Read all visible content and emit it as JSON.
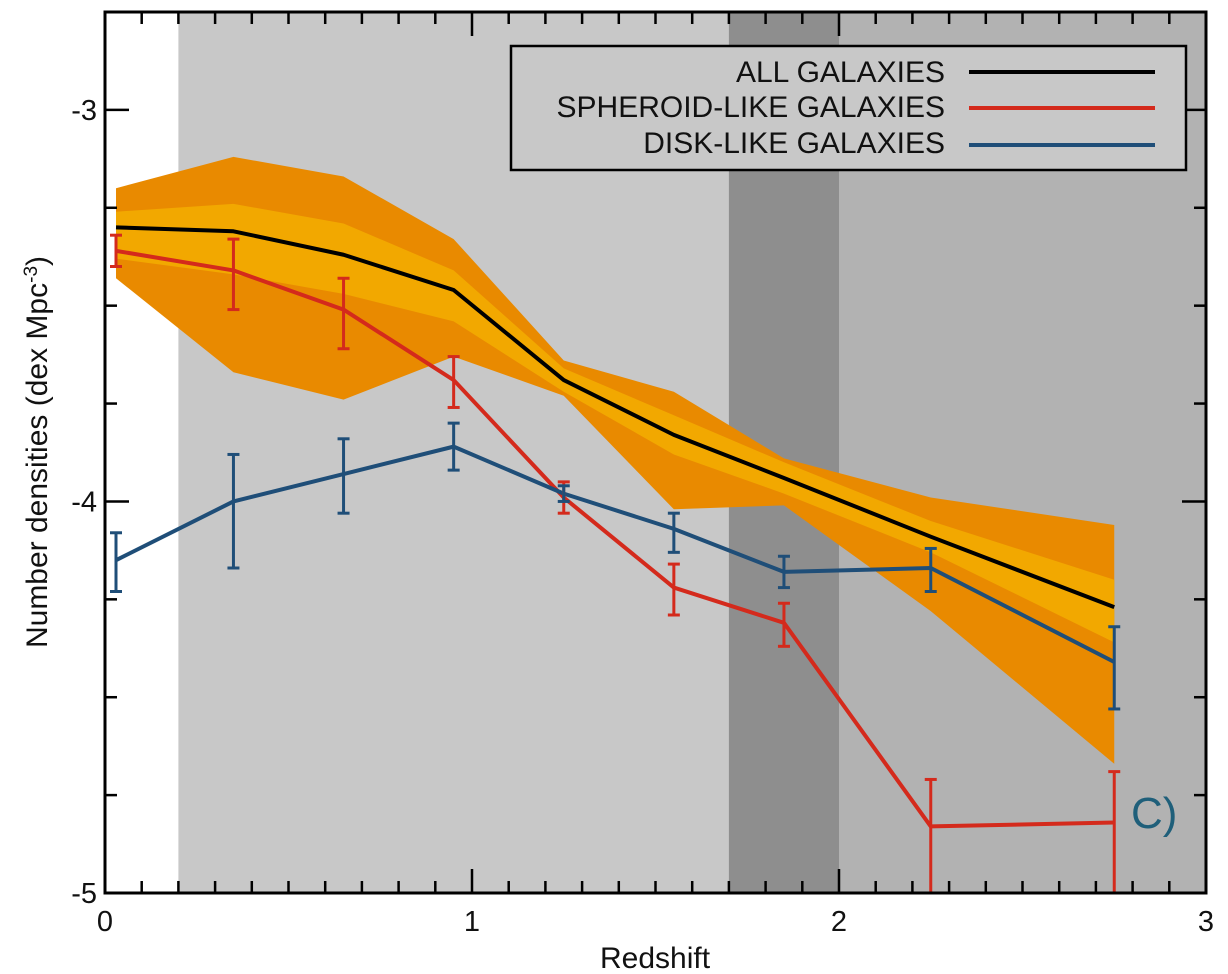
{
  "chart_data": {
    "type": "line",
    "xlabel": "Redshift",
    "ylabel": "Number densities (dex Mpc",
    "ylabel_sup": "-3",
    "ylabel_close": ")",
    "xlim": [
      0,
      3
    ],
    "ylim": [
      -5,
      -2.75
    ],
    "x_ticks": [
      {
        "value": 0,
        "label": "0"
      },
      {
        "value": 1,
        "label": "1"
      },
      {
        "value": 2,
        "label": "2"
      },
      {
        "value": 3,
        "label": "3"
      }
    ],
    "y_ticks": [
      {
        "value": -3,
        "label": "-3"
      },
      {
        "value": -4,
        "label": "-4"
      },
      {
        "value": -5,
        "label": "-5"
      }
    ],
    "x_minor_step": 0.1,
    "y_minor_step": 0.25,
    "shaded_regions": [
      {
        "x0": 0.2,
        "x1": 3.0,
        "color": "#c8c8c8"
      },
      {
        "x0": 2.0,
        "x1": 3.0,
        "color": "#b2b2b2"
      },
      {
        "x0": 1.7,
        "x1": 2.0,
        "color": "#8e8e8e"
      }
    ],
    "x": [
      0.03,
      0.35,
      0.65,
      0.95,
      1.25,
      1.55,
      1.85,
      2.25,
      2.75
    ],
    "bands": [
      {
        "name": "outer",
        "color": "#e98a00",
        "lower": [
          -3.43,
          -3.67,
          -3.74,
          -3.63,
          -3.73,
          -4.02,
          -4.01,
          -4.28,
          -4.67
        ],
        "upper": [
          -3.2,
          -3.12,
          -3.17,
          -3.33,
          -3.64,
          -3.72,
          -3.89,
          -3.99,
          -4.06
        ]
      },
      {
        "name": "inner",
        "color": "#f2a800",
        "lower": [
          -3.38,
          -3.42,
          -3.47,
          -3.54,
          -3.72,
          -3.88,
          -3.98,
          -4.13,
          -4.36
        ],
        "upper": [
          -3.26,
          -3.24,
          -3.29,
          -3.41,
          -3.66,
          -3.78,
          -3.9,
          -4.05,
          -4.2
        ]
      }
    ],
    "series": [
      {
        "name": "ALL GALAXIES",
        "color": "#000000",
        "values": [
          -3.3,
          -3.31,
          -3.37,
          -3.46,
          -3.69,
          -3.83,
          -3.94,
          -4.09,
          -4.27
        ],
        "err_low": null,
        "err_high": null
      },
      {
        "name": "SPHEROID-LIKE GALAXIES",
        "color": "#d42a1c",
        "values": [
          -3.36,
          -3.41,
          -3.51,
          -3.69,
          -3.99,
          -4.22,
          -4.31,
          -4.83,
          -4.82
        ],
        "err_low": [
          0.04,
          0.1,
          0.1,
          0.07,
          0.04,
          0.07,
          0.06,
          0.2,
          0.18
        ],
        "err_high": [
          0.04,
          0.08,
          0.08,
          0.06,
          0.04,
          0.06,
          0.05,
          0.12,
          0.13
        ]
      },
      {
        "name": "DISK-LIKE GALAXIES",
        "color": "#1f4e78",
        "values": [
          -4.15,
          -4.0,
          -3.93,
          -3.86,
          -3.98,
          -4.07,
          -4.18,
          -4.17,
          -4.41
        ],
        "err_low": [
          0.08,
          0.17,
          0.1,
          0.06,
          0.02,
          0.06,
          0.04,
          0.06,
          0.12
        ],
        "err_high": [
          0.07,
          0.12,
          0.09,
          0.06,
          0.02,
          0.04,
          0.04,
          0.05,
          0.09
        ]
      }
    ],
    "legend": {
      "position": "top-right",
      "entries": [
        "ALL GALAXIES",
        "SPHEROID-LIKE GALAXIES",
        "DISK-LIKE GALAXIES"
      ]
    },
    "annotation": "C)"
  }
}
